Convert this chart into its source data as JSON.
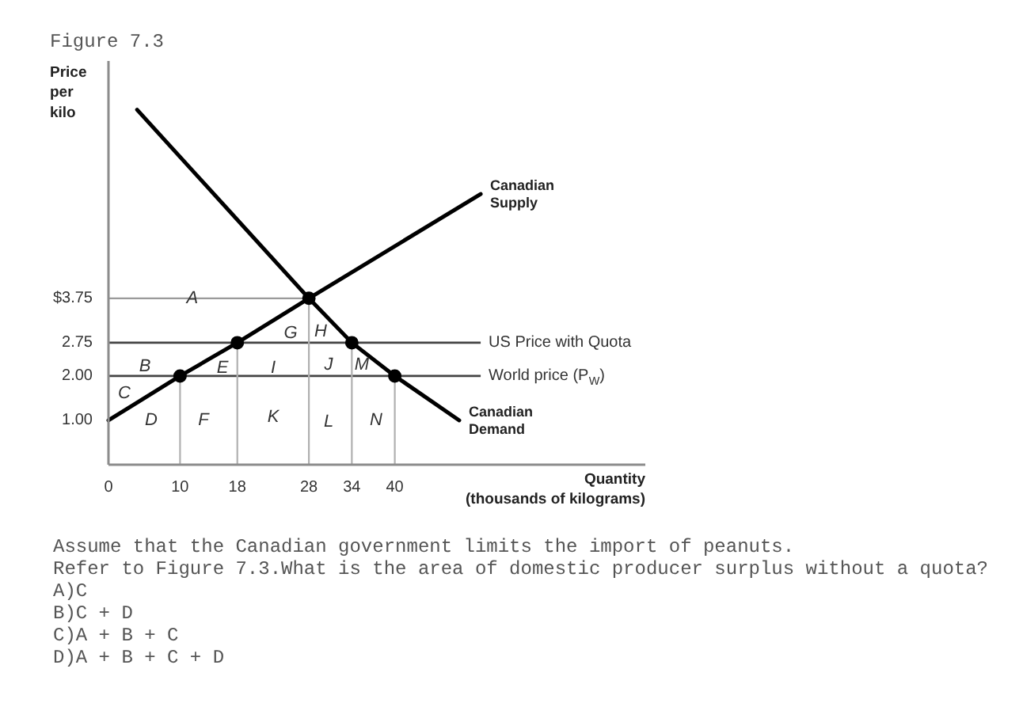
{
  "chart_data": {
    "type": "line",
    "title": "Figure 7.3",
    "ylabel": "Price\nper\nkilo",
    "xlabel": "Quantity\n(thousands of kilograms)",
    "xlim": [
      0,
      75
    ],
    "ylim": [
      0,
      9.1
    ],
    "xticks": [
      0,
      10,
      18,
      28,
      34,
      40
    ],
    "yticks": [
      {
        "value": 1,
        "label": "1.00"
      },
      {
        "value": 2,
        "label": "2.00"
      },
      {
        "value": 2.75,
        "label": "2.75"
      },
      {
        "value": 3.75,
        "label": "$3.75"
      }
    ],
    "grid": false,
    "legend": false,
    "line_style": "solid",
    "series": [
      {
        "name": "Canadian\nSupply",
        "color": "#000000",
        "x": [
          0,
          10,
          18,
          28,
          52
        ],
        "values": [
          1,
          2,
          2.75,
          3.75,
          6.1
        ]
      },
      {
        "name": "Canadian\nDemand",
        "color": "#000000",
        "x": [
          4,
          28,
          34,
          40,
          49
        ],
        "values": [
          8,
          3.75,
          2.75,
          2,
          1
        ]
      },
      {
        "type": "scatter",
        "marker": "circle",
        "color": "#000000",
        "x": [
          10,
          18,
          28,
          34,
          40
        ],
        "values": [
          2,
          2.75,
          3.75,
          2.75,
          2
        ]
      }
    ],
    "ref_lines": [
      {
        "axis": "y",
        "value": 2.75,
        "label": "US Price with Quota",
        "color": "#444444"
      },
      {
        "axis": "y",
        "value": 2,
        "label": "World price (P$_{W}$)",
        "color": "#444444"
      },
      {
        "axis": "y",
        "value": 3.75,
        "color": "#9a9a9a"
      },
      {
        "axis": "x",
        "value": 10,
        "color": "#b0b0b0"
      },
      {
        "axis": "x",
        "value": 18,
        "color": "#b0b0b0"
      },
      {
        "axis": "x",
        "value": 28,
        "color": "#b0b0b0"
      },
      {
        "axis": "x",
        "value": 34,
        "color": "#b0b0b0"
      },
      {
        "axis": "x",
        "value": 40,
        "color": "#b0b0b0"
      }
    ],
    "annotations": [
      {
        "text": "A",
        "x": 11.7,
        "y": 3.75
      },
      "B",
      "C",
      "D",
      "E",
      "F",
      "G",
      "H",
      "I",
      "J",
      "K",
      "L",
      "M",
      "N",
      "Assume that the Canadian government limits the import of peanuts.",
      "Refer to Figure 7.3.What is the area of domestic producer surplus without a quota?",
      "A)C",
      "B)C + D",
      "C)A + B + C",
      "D)A + B + C + D"
    ]
  }
}
